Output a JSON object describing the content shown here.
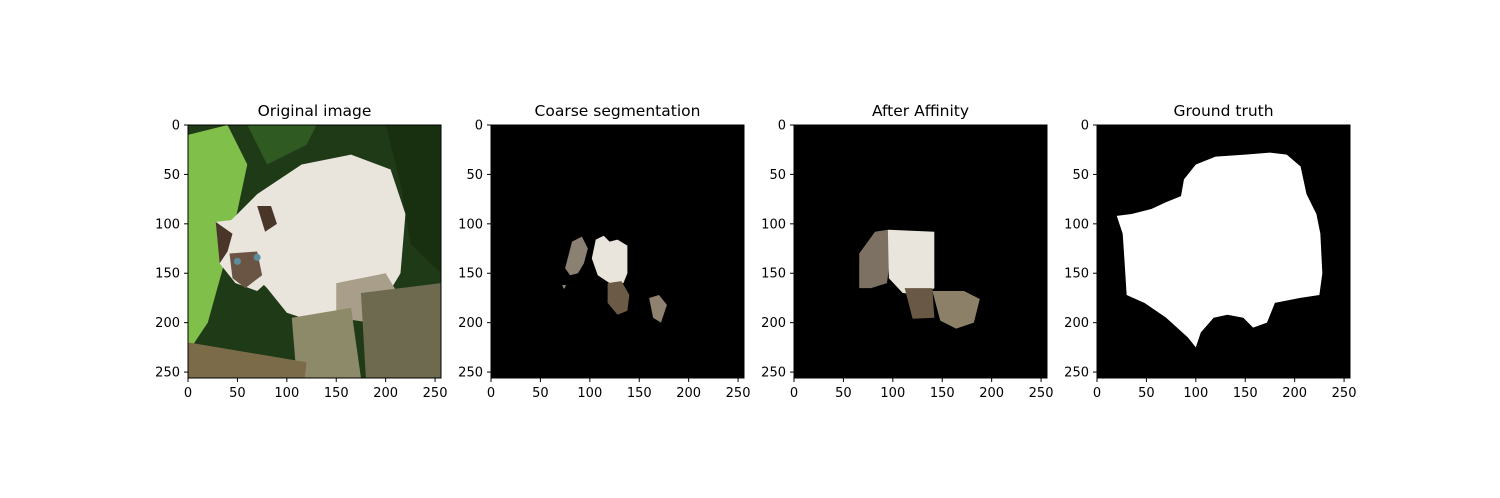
{
  "figure": {
    "background": "#ffffff"
  },
  "chart_data": [
    {
      "type": "image",
      "title": "Original image",
      "xlim": [
        0,
        256
      ],
      "ylim": [
        256,
        0
      ],
      "xticks": [
        0,
        50,
        100,
        150,
        200,
        250
      ],
      "yticks": [
        0,
        50,
        100,
        150,
        200,
        250
      ],
      "content": "photo"
    },
    {
      "type": "image",
      "title": "Coarse segmentation",
      "xlim": [
        0,
        256
      ],
      "ylim": [
        256,
        0
      ],
      "xticks": [
        0,
        50,
        100,
        150,
        200,
        250
      ],
      "yticks": [
        0,
        50,
        100,
        150,
        200,
        250
      ],
      "content": "masked_coarse"
    },
    {
      "type": "image",
      "title": "After Affinity",
      "xlim": [
        0,
        256
      ],
      "ylim": [
        256,
        0
      ],
      "xticks": [
        0,
        50,
        100,
        150,
        200,
        250
      ],
      "yticks": [
        0,
        50,
        100,
        150,
        200,
        250
      ],
      "content": "masked_affinity"
    },
    {
      "type": "image",
      "title": "Ground truth",
      "xlim": [
        0,
        256
      ],
      "ylim": [
        256,
        0
      ],
      "xticks": [
        0,
        50,
        100,
        150,
        200,
        250
      ],
      "yticks": [
        0,
        50,
        100,
        150,
        200,
        250
      ],
      "content": "binary_mask"
    }
  ],
  "colors": {
    "mask_bg": "#000000",
    "mask_fg": "#ffffff",
    "foliage_dark": "#1f3a16",
    "foliage_light": "#7fbf4a",
    "fur": "#e9e5dc",
    "fur_shadow": "#a99e8a",
    "point_brown": "#4a3628",
    "wood": "#6e6a50"
  }
}
